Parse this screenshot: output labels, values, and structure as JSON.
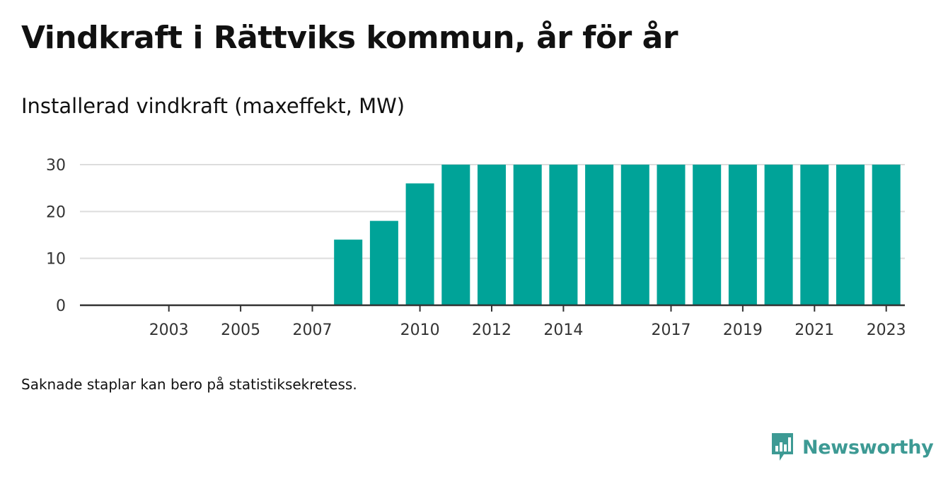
{
  "title": "Vindkraft i Rättviks kommun, år för år",
  "subtitle": "Installerad vindkraft (maxeffekt, MW)",
  "footnote": "Saknade staplar kan bero på statistiksekretess.",
  "brand": {
    "name": "Newsworthy",
    "icon": "newsworthy-logo-icon",
    "color": "#3d9a94"
  },
  "colors": {
    "bar": "#00a398",
    "grid": "#dddddd",
    "axis": "#333333"
  },
  "chart_data": {
    "type": "bar",
    "title": "Vindkraft i Rättviks kommun, år för år",
    "ylabel": "Installerad vindkraft (maxeffekt, MW)",
    "xlabel": "",
    "categories": [
      "2002",
      "2003",
      "2004",
      "2005",
      "2006",
      "2007",
      "2008",
      "2009",
      "2010",
      "2011",
      "2012",
      "2013",
      "2014",
      "2015",
      "2016",
      "2017",
      "2018",
      "2019",
      "2020",
      "2021",
      "2022",
      "2023"
    ],
    "values": [
      0,
      0,
      0,
      0,
      0,
      0,
      14,
      18,
      26,
      30,
      30,
      30,
      30,
      30,
      30,
      30,
      30,
      30,
      30,
      30,
      30,
      30
    ],
    "x_tick_labels": [
      "2003",
      "2005",
      "2007",
      "2010",
      "2012",
      "2014",
      "2017",
      "2019",
      "2021",
      "2023"
    ],
    "y_ticks": [
      0,
      10,
      20,
      30
    ],
    "ylim": [
      0,
      30
    ],
    "grid": true,
    "legend": "none"
  }
}
